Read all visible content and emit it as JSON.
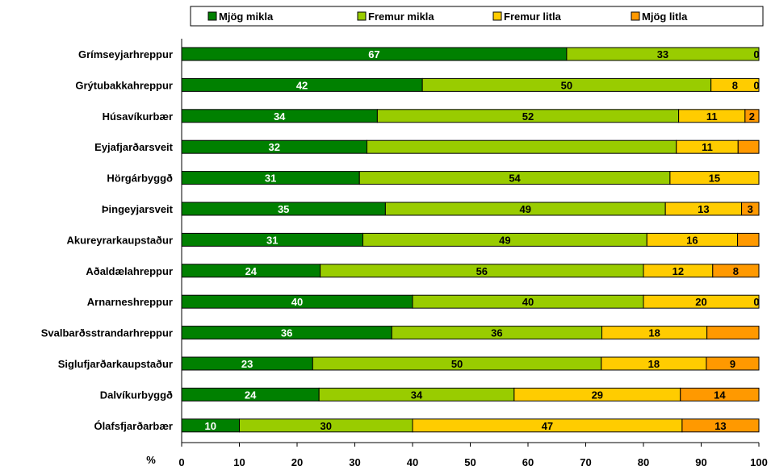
{
  "chart_data": {
    "type": "bar",
    "orientation": "horizontal",
    "stacked": true,
    "percent": true,
    "categories": [
      "Grímseyjarhreppur",
      "Grýtubakkahreppur",
      "Húsavíkurbær",
      "Eyjafjarðarsveit",
      "Hörgárbyggð",
      "Þingeyjarsveit",
      "Akureyrarkaupstaður",
      "Aðaldælahreppur",
      "Arnarneshreppur",
      "Svalbarðsstrandarhreppur",
      "Siglufjarðarkaupstaður",
      "Dalvíkurbyggð",
      "Ólafsfjarðarbær"
    ],
    "series": [
      {
        "name": "Mjög mikla",
        "color": "#008000",
        "label_color": "#ffffff",
        "values": [
          66.7,
          41.7,
          33.9,
          32.1,
          30.8,
          35.3,
          31.4,
          24.0,
          40.0,
          36.4,
          22.7,
          23.8,
          10.0
        ],
        "labels": [
          "67",
          "42",
          "34",
          "32",
          "31",
          "35",
          "31",
          "24",
          "40",
          "36",
          "23",
          "24",
          "10"
        ]
      },
      {
        "name": "Fremur mikla",
        "color": "#99cc00",
        "label_color": "#000000",
        "values": [
          33.3,
          50.0,
          52.2,
          53.6,
          53.8,
          48.5,
          49.2,
          56.0,
          40.0,
          36.4,
          50.0,
          33.8,
          30.0
        ],
        "labels": [
          "33",
          "50",
          "52",
          "",
          "54",
          "49",
          "49",
          "56",
          "40",
          "36",
          "50",
          "34",
          "30"
        ]
      },
      {
        "name": "Fremur litla",
        "color": "#ffcc00",
        "label_color": "#000000",
        "values": [
          0.0,
          8.3,
          11.5,
          10.7,
          15.4,
          13.2,
          15.7,
          12.0,
          20.0,
          18.2,
          18.2,
          28.8,
          46.7
        ],
        "labels": [
          "",
          "8",
          "11",
          "11",
          "15",
          "13",
          "16",
          "12",
          "20",
          "18",
          "18",
          "29",
          "47"
        ]
      },
      {
        "name": "Mjög litla",
        "color": "#ff9900",
        "label_color": "#000000",
        "values": [
          0.0,
          0.0,
          2.4,
          3.6,
          0.0,
          3.0,
          3.7,
          8.0,
          0.0,
          9.0,
          9.1,
          13.6,
          13.3
        ],
        "labels": [
          "0",
          "0",
          "2",
          "",
          "",
          "3",
          "",
          "8",
          "0",
          "",
          "9",
          "14",
          "13"
        ]
      }
    ],
    "xlim": [
      0,
      100
    ],
    "xticks": [
      "0",
      "10",
      "20",
      "30",
      "40",
      "50",
      "60",
      "70",
      "80",
      "90",
      "100"
    ],
    "xlabel": "%",
    "legend_position": "top",
    "grid": false
  }
}
